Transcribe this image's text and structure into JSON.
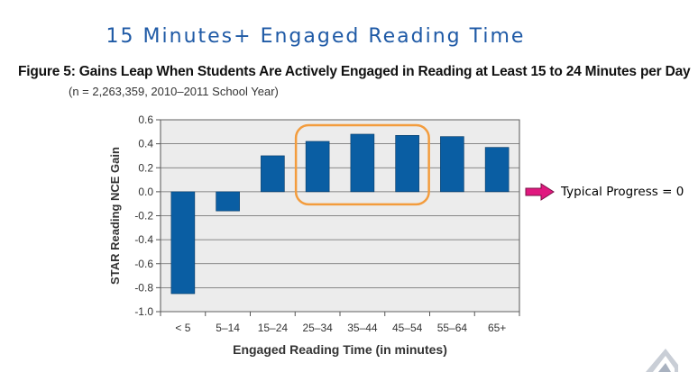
{
  "slide": {
    "title": "15 Minutes+ Engaged Reading Time",
    "figure_caption": "Figure 5: Gains Leap When Students Are Actively Engaged in Reading at Least 15 to 24 Minutes per Day",
    "figure_subcaption": "(n = 2,263,359, 2010–2011 School Year)",
    "callout": "Typical Progress = 0",
    "callout_color": "#e0187f",
    "highlight_color": "#f39c3d"
  },
  "chart_data": {
    "type": "bar",
    "categories": [
      "< 5",
      "5–14",
      "15–24",
      "25–34",
      "35–44",
      "45–54",
      "55–64",
      "65+"
    ],
    "values": [
      -0.85,
      -0.16,
      0.3,
      0.42,
      0.48,
      0.47,
      0.46,
      0.37
    ],
    "xlabel": "Engaged Reading Time (in minutes)",
    "ylabel": "STAR Reading NCE Gain",
    "ylim": [
      -1.0,
      0.6
    ],
    "yticks": [
      0.6,
      0.4,
      0.2,
      0.0,
      -0.2,
      -0.4,
      -0.6,
      -0.8,
      -1.0
    ],
    "ytick_labels": [
      "0.6",
      "0.4",
      "0.2",
      "0.0",
      "-0.2",
      "-0.4",
      "-0.6",
      "-0.8",
      "-1.0"
    ],
    "grid": true,
    "bar_color": "#0a5ea3",
    "plot_background": "#ececec",
    "highlighted_categories": [
      "25–34",
      "35–44",
      "45–54"
    ]
  }
}
